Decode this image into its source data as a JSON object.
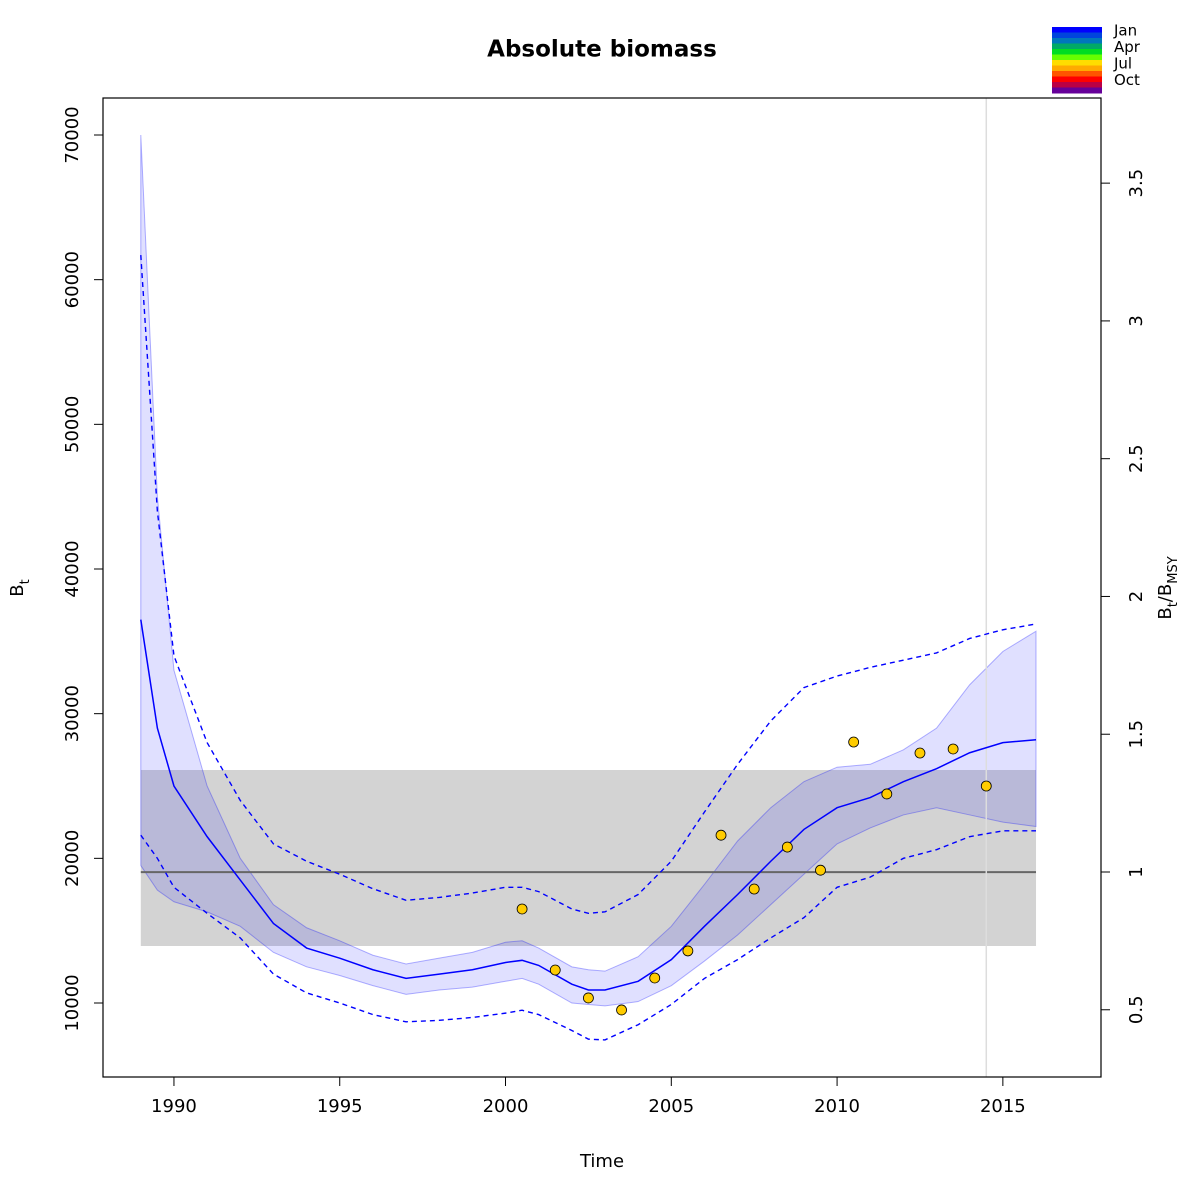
{
  "chart_data": {
    "type": "line",
    "title": "Absolute biomass",
    "xlabel": "Time",
    "ylabel": [
      "B",
      "t"
    ],
    "y2label": [
      "B",
      "t",
      "/B",
      "MSY"
    ],
    "xlim": [
      1987.86,
      2017.96
    ],
    "ylim": [
      4885,
      72558
    ],
    "y2lim": [
      0.256,
      3.809
    ],
    "xticks": [
      1990,
      1995,
      2000,
      2005,
      2010,
      2015
    ],
    "yticks": [
      10000,
      20000,
      30000,
      40000,
      50000,
      60000,
      70000
    ],
    "y2ticks": [
      0.5,
      1,
      1.5,
      2,
      2.5,
      3,
      3.5
    ],
    "bmsy": 19050,
    "bmsy_band": [
      13940,
      26106
    ],
    "band_x": [
      1989,
      2016
    ],
    "vline_x": 2014.5,
    "x": [
      1989,
      1989.5,
      1990,
      1991,
      1992,
      1993,
      1994,
      1995,
      1996,
      1997,
      1998,
      1999,
      2000,
      2000.5,
      2001,
      2002,
      2002.5,
      2003,
      2004,
      2005,
      2006,
      2007,
      2008,
      2009,
      2010,
      2011,
      2012,
      2013,
      2014,
      2015,
      2016
    ],
    "main": {
      "color": "#0000ff",
      "values": [
        36500,
        29000,
        25000,
        21500,
        18500,
        15500,
        13800,
        13100,
        12300,
        11700,
        12000,
        12300,
        12800,
        12950,
        12600,
        11300,
        10900,
        10900,
        11500,
        13000,
        15300,
        17500,
        19800,
        22000,
        23500,
        24200,
        25300,
        26200,
        27300,
        28000,
        28200
      ]
    },
    "ci_upper": {
      "values": [
        70000,
        45000,
        33000,
        25000,
        20000,
        16800,
        15200,
        14300,
        13300,
        12700,
        13100,
        13500,
        14200,
        14300,
        13800,
        12500,
        12300,
        12200,
        13200,
        15300,
        18200,
        21200,
        23500,
        25300,
        26300,
        26500,
        27500,
        29000,
        32000,
        34300,
        35700
      ]
    },
    "ci_lower": {
      "values": [
        19500,
        17800,
        17000,
        16300,
        15300,
        13500,
        12500,
        11900,
        11200,
        10600,
        10900,
        11100,
        11500,
        11700,
        11300,
        10000,
        9900,
        9800,
        10100,
        11200,
        12900,
        14700,
        16800,
        18900,
        21000,
        22100,
        23000,
        23500,
        23000,
        22500,
        22200
      ]
    },
    "ci_color": "#0000ff",
    "dashed_upper": {
      "values": [
        61700,
        44000,
        34000,
        28000,
        24000,
        21000,
        19800,
        18900,
        17900,
        17100,
        17300,
        17600,
        18000,
        18000,
        17700,
        16500,
        16200,
        16300,
        17500,
        19800,
        23200,
        26500,
        29500,
        31800,
        32600,
        33200,
        33700,
        34200,
        35200,
        35800,
        36200
      ]
    },
    "dashed_lower": {
      "values": [
        21600,
        20000,
        18000,
        16200,
        14500,
        12000,
        10700,
        10000,
        9200,
        8700,
        8800,
        9000,
        9300,
        9500,
        9200,
        8100,
        7500,
        7450,
        8500,
        9900,
        11700,
        13000,
        14500,
        15900,
        18000,
        18700,
        20000,
        20600,
        21500,
        21900,
        21900
      ]
    },
    "points": {
      "color": "#ffcc00",
      "x": [
        2000.5,
        2001.5,
        2002.5,
        2003.5,
        2004.5,
        2005.5,
        2006.5,
        2007.5,
        2008.5,
        2009.5,
        2010.5,
        2011.5,
        2012.5,
        2013.5,
        2014.5
      ],
      "values": [
        16500,
        12280,
        10350,
        9520,
        11730,
        13600,
        21600,
        17880,
        20780,
        19180,
        28040,
        24450,
        27280,
        27560,
        25000
      ]
    },
    "legend": {
      "labels": [
        "Jan",
        "Apr",
        "Jul",
        "Oct"
      ],
      "colors": [
        "#0000ff",
        "#0044dd",
        "#0077bb",
        "#00aa66",
        "#00dd22",
        "#66ff00",
        "#ffdd00",
        "#ffaa00",
        "#ff5500",
        "#ff0000",
        "#bb0044",
        "#660099"
      ]
    }
  }
}
